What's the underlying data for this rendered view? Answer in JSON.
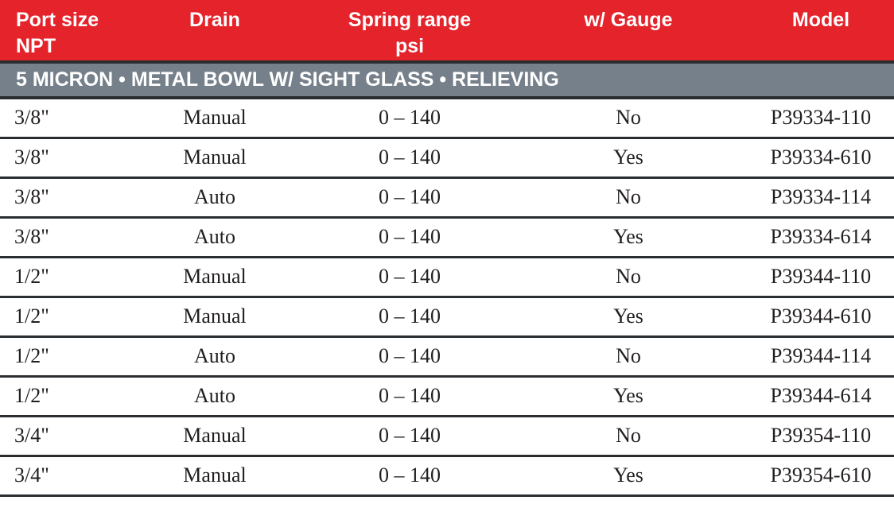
{
  "colors": {
    "header_red": "#e5232b",
    "section_gray": "#75808a",
    "divider": "#2b2e31",
    "text_dark": "#221e1f",
    "header_text": "#ffffff"
  },
  "table": {
    "columns": [
      {
        "title": "Port size",
        "subtitle": "NPT"
      },
      {
        "title": "Drain",
        "subtitle": ""
      },
      {
        "title": "Spring range",
        "subtitle": "psi"
      },
      {
        "title": "w/ Gauge",
        "subtitle": ""
      },
      {
        "title": "Model",
        "subtitle": ""
      }
    ],
    "section_title": "5 MICRON • METAL BOWL W/ SIGHT GLASS • RELIEVING",
    "rows": [
      {
        "port": "3/8\"",
        "drain": "Manual",
        "spring": "0 – 140",
        "gauge": "No",
        "model": "P39334-110"
      },
      {
        "port": "3/8\"",
        "drain": "Manual",
        "spring": "0 – 140",
        "gauge": "Yes",
        "model": "P39334-610"
      },
      {
        "port": "3/8\"",
        "drain": "Auto",
        "spring": "0 – 140",
        "gauge": "No",
        "model": "P39334-114"
      },
      {
        "port": "3/8\"",
        "drain": "Auto",
        "spring": "0 – 140",
        "gauge": "Yes",
        "model": "P39334-614"
      },
      {
        "port": "1/2\"",
        "drain": "Manual",
        "spring": "0 – 140",
        "gauge": "No",
        "model": "P39344-110"
      },
      {
        "port": "1/2\"",
        "drain": "Manual",
        "spring": "0 – 140",
        "gauge": "Yes",
        "model": "P39344-610"
      },
      {
        "port": "1/2\"",
        "drain": "Auto",
        "spring": "0 – 140",
        "gauge": "No",
        "model": "P39344-114"
      },
      {
        "port": "1/2\"",
        "drain": "Auto",
        "spring": "0 – 140",
        "gauge": "Yes",
        "model": "P39344-614"
      },
      {
        "port": "3/4\"",
        "drain": "Manual",
        "spring": "0 – 140",
        "gauge": "No",
        "model": "P39354-110"
      },
      {
        "port": "3/4\"",
        "drain": "Manual",
        "spring": "0 – 140",
        "gauge": "Yes",
        "model": "P39354-610"
      }
    ]
  }
}
